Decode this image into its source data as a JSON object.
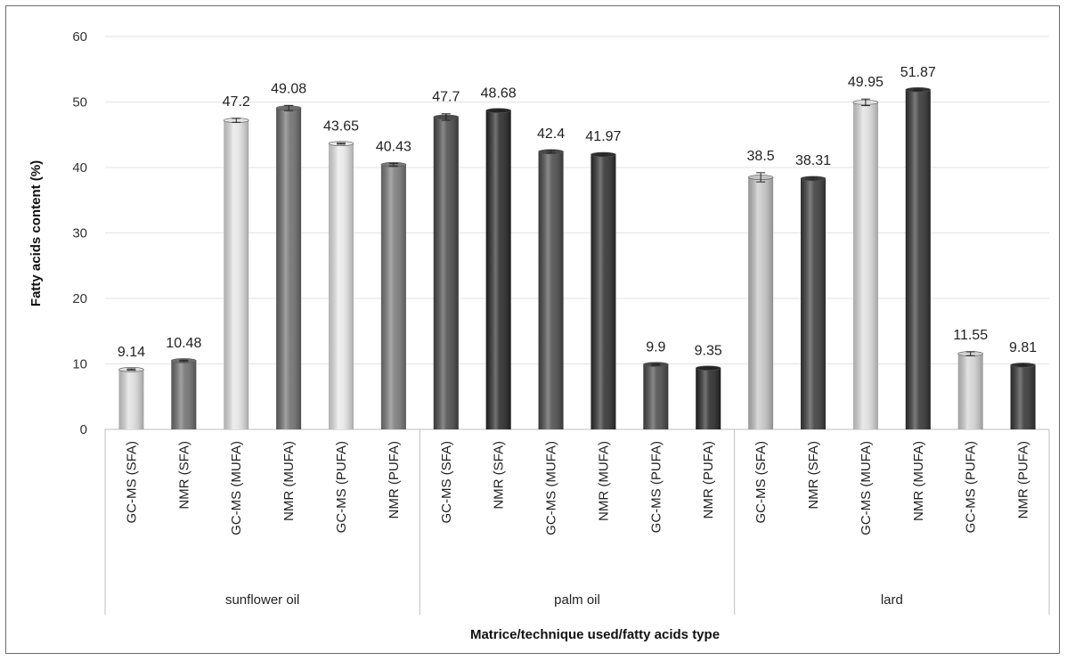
{
  "chart_data": {
    "type": "bar",
    "title": "",
    "xlabel": "Matrice/technique used/fatty  acids type",
    "ylabel": "Fatty acids content (%)",
    "ylim": [
      0,
      60
    ],
    "yticks": [
      0,
      10,
      20,
      30,
      40,
      50,
      60
    ],
    "grid": true,
    "groups": [
      "sunflower oil",
      "palm oil",
      "lard"
    ],
    "categories": [
      "GC-MS (SFA)",
      "NMR (SFA)",
      "GC-MS (MUFA)",
      "NMR (MUFA)",
      "GC-MS (PUFA)",
      "NMR (PUFA)",
      "GC-MS (SFA)",
      "NMR (SFA)",
      "GC-MS (MUFA)",
      "NMR (MUFA)",
      "GC-MS (PUFA)",
      "NMR (PUFA)",
      "GC-MS (SFA)",
      "NMR (SFA)",
      "GC-MS (MUFA)",
      "NMR (MUFA)",
      "GC-MS (PUFA)",
      "NMR (PUFA)"
    ],
    "values": [
      9.14,
      10.48,
      47.2,
      49.08,
      43.65,
      40.43,
      47.7,
      48.68,
      42.4,
      41.97,
      9.9,
      9.35,
      38.5,
      38.31,
      49.95,
      51.87,
      11.55,
      9.81
    ],
    "data_labels": [
      "9.14",
      "10.48",
      "47.2",
      "49.08",
      "43.65",
      "40.43",
      "47.7",
      "48.68",
      "42.4",
      "41.97",
      "9.9",
      "9.35",
      "38.5",
      "38.31",
      "49.95",
      "51.87",
      "11.55",
      "9.81"
    ],
    "errors": [
      0.1,
      0.1,
      0.3,
      0.4,
      0.1,
      0.2,
      0.5,
      0.1,
      0.2,
      0.2,
      0.1,
      0.1,
      0.7,
      0.2,
      0.5,
      0.1,
      0.3,
      0.1
    ],
    "bar_colors": [
      "#dcdcdc",
      "#6e6e6e",
      "#e4e4e4",
      "#6e6e6e",
      "#e8e8e8",
      "#7a7a7a",
      "#4a4a4a",
      "#262626",
      "#4a4a4a",
      "#2e2e2e",
      "#4a4a4a",
      "#262626",
      "#c4c4c4",
      "#3a3a3a",
      "#dedede",
      "#333333",
      "#d2d2d2",
      "#333333"
    ]
  }
}
